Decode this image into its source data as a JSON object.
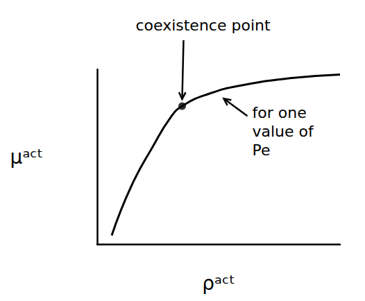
{
  "chart_data": {
    "type": "line",
    "x_label": "ρᵃᶜᵗ",
    "y_label": "μᵃᶜᵗ",
    "x": [
      0.6,
      1.4,
      2.3,
      3.0,
      3.5,
      4.6,
      6.0,
      8.0,
      10.0
    ],
    "values": [
      0.5,
      3.3,
      5.6,
      7.2,
      7.9,
      8.6,
      9.1,
      9.5,
      9.7
    ],
    "color": "#000000",
    "line_style": "solid",
    "xlim": [
      0,
      10
    ],
    "ylim": [
      0,
      10
    ],
    "xticks": [],
    "yticks": [],
    "grid": false,
    "tick_labels": false,
    "annotations": [
      {
        "text": "coexistence point",
        "x": 3.5,
        "y": 7.9,
        "marker": "circle"
      },
      {
        "text": "for one value of Pe",
        "x": 5.1,
        "y": 8.6
      }
    ]
  }
}
